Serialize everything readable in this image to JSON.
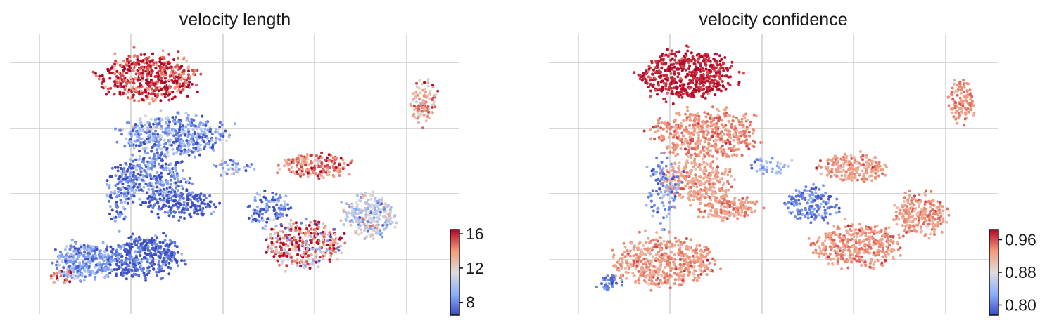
{
  "chart_data": [
    {
      "type": "scatter",
      "title": "velocity length",
      "xlabel": "",
      "ylabel": "",
      "grid": true,
      "colormap": [
        "#3b4cc0",
        "#8db0fe",
        "#dddcdc",
        "#f49a7b",
        "#b40426"
      ],
      "colorbar": {
        "placement": "bottom-right",
        "range": [
          6.5,
          16.5
        ],
        "ticks": [
          8,
          12,
          16
        ],
        "tick_labels": [
          "8",
          "12",
          "16"
        ]
      },
      "clusters": [
        {
          "cx": 0.29,
          "cy": 0.13,
          "rx": 0.11,
          "ry": 0.09,
          "value": 15.5,
          "spread": 1.5,
          "n": 520
        },
        {
          "cx": 0.35,
          "cy": 0.36,
          "rx": 0.12,
          "ry": 0.08,
          "value": 8.5,
          "spread": 1.6,
          "n": 460
        },
        {
          "cx": 0.3,
          "cy": 0.52,
          "rx": 0.08,
          "ry": 0.09,
          "value": 8.0,
          "spread": 1.6,
          "n": 320
        },
        {
          "cx": 0.37,
          "cy": 0.62,
          "rx": 0.08,
          "ry": 0.05,
          "value": 7.0,
          "spread": 1.0,
          "n": 170
        },
        {
          "cx": 0.22,
          "cy": 0.58,
          "rx": 0.03,
          "ry": 0.12,
          "value": 7.5,
          "spread": 1.5,
          "n": 90
        },
        {
          "cx": 0.27,
          "cy": 0.82,
          "rx": 0.09,
          "ry": 0.08,
          "value": 7.0,
          "spread": 1.2,
          "n": 380
        },
        {
          "cx": 0.13,
          "cy": 0.84,
          "rx": 0.07,
          "ry": 0.07,
          "value": 8.6,
          "spread": 1.3,
          "n": 300
        },
        {
          "cx": 0.08,
          "cy": 0.9,
          "rx": 0.03,
          "ry": 0.03,
          "value": 14.0,
          "spread": 2.5,
          "n": 30
        },
        {
          "cx": 0.69,
          "cy": 0.47,
          "rx": 0.08,
          "ry": 0.045,
          "value": 14.5,
          "spread": 1.5,
          "n": 200
        },
        {
          "cx": 0.66,
          "cy": 0.77,
          "rx": 0.09,
          "ry": 0.09,
          "value": 14.0,
          "spread": 3.0,
          "n": 340
        },
        {
          "cx": 0.82,
          "cy": 0.66,
          "rx": 0.06,
          "ry": 0.08,
          "value": 10.5,
          "spread": 1.5,
          "n": 240
        },
        {
          "cx": 0.58,
          "cy": 0.64,
          "rx": 0.05,
          "ry": 0.07,
          "value": 8.0,
          "spread": 1.5,
          "n": 110
        },
        {
          "cx": 0.95,
          "cy": 0.22,
          "rx": 0.03,
          "ry": 0.08,
          "value": 13.5,
          "spread": 1.5,
          "n": 110
        },
        {
          "cx": 0.49,
          "cy": 0.48,
          "rx": 0.05,
          "ry": 0.03,
          "value": 9.0,
          "spread": 2.0,
          "n": 40
        }
      ]
    },
    {
      "type": "scatter",
      "title": "velocity confidence",
      "xlabel": "",
      "ylabel": "",
      "grid": true,
      "colormap": [
        "#3b4cc0",
        "#8db0fe",
        "#dddcdc",
        "#f49a7b",
        "#b40426"
      ],
      "colorbar": {
        "placement": "bottom-right",
        "range": [
          0.775,
          0.985
        ],
        "ticks": [
          0.8,
          0.88,
          0.96
        ],
        "tick_labels": [
          "0.80",
          "0.88",
          "0.96"
        ]
      },
      "clusters": [
        {
          "cx": 0.29,
          "cy": 0.12,
          "rx": 0.11,
          "ry": 0.09,
          "value": 0.975,
          "spread": 0.012,
          "n": 520
        },
        {
          "cx": 0.34,
          "cy": 0.35,
          "rx": 0.12,
          "ry": 0.09,
          "value": 0.935,
          "spread": 0.015,
          "n": 460
        },
        {
          "cx": 0.31,
          "cy": 0.53,
          "rx": 0.08,
          "ry": 0.08,
          "value": 0.925,
          "spread": 0.015,
          "n": 300
        },
        {
          "cx": 0.38,
          "cy": 0.63,
          "rx": 0.07,
          "ry": 0.05,
          "value": 0.93,
          "spread": 0.015,
          "n": 160
        },
        {
          "cx": 0.23,
          "cy": 0.56,
          "rx": 0.04,
          "ry": 0.12,
          "value": 0.815,
          "spread": 0.025,
          "n": 110
        },
        {
          "cx": 0.23,
          "cy": 0.84,
          "rx": 0.12,
          "ry": 0.09,
          "value": 0.93,
          "spread": 0.015,
          "n": 520
        },
        {
          "cx": 0.1,
          "cy": 0.92,
          "rx": 0.03,
          "ry": 0.03,
          "value": 0.8,
          "spread": 0.02,
          "n": 40
        },
        {
          "cx": 0.69,
          "cy": 0.48,
          "rx": 0.08,
          "ry": 0.05,
          "value": 0.93,
          "spread": 0.015,
          "n": 210
        },
        {
          "cx": 0.7,
          "cy": 0.78,
          "rx": 0.1,
          "ry": 0.08,
          "value": 0.935,
          "spread": 0.015,
          "n": 380
        },
        {
          "cx": 0.85,
          "cy": 0.66,
          "rx": 0.06,
          "ry": 0.08,
          "value": 0.93,
          "spread": 0.015,
          "n": 230
        },
        {
          "cx": 0.59,
          "cy": 0.62,
          "rx": 0.06,
          "ry": 0.07,
          "value": 0.8,
          "spread": 0.02,
          "n": 150
        },
        {
          "cx": 0.95,
          "cy": 0.22,
          "rx": 0.03,
          "ry": 0.08,
          "value": 0.935,
          "spread": 0.015,
          "n": 110
        },
        {
          "cx": 0.49,
          "cy": 0.47,
          "rx": 0.05,
          "ry": 0.03,
          "value": 0.83,
          "spread": 0.02,
          "n": 40
        }
      ]
    }
  ]
}
